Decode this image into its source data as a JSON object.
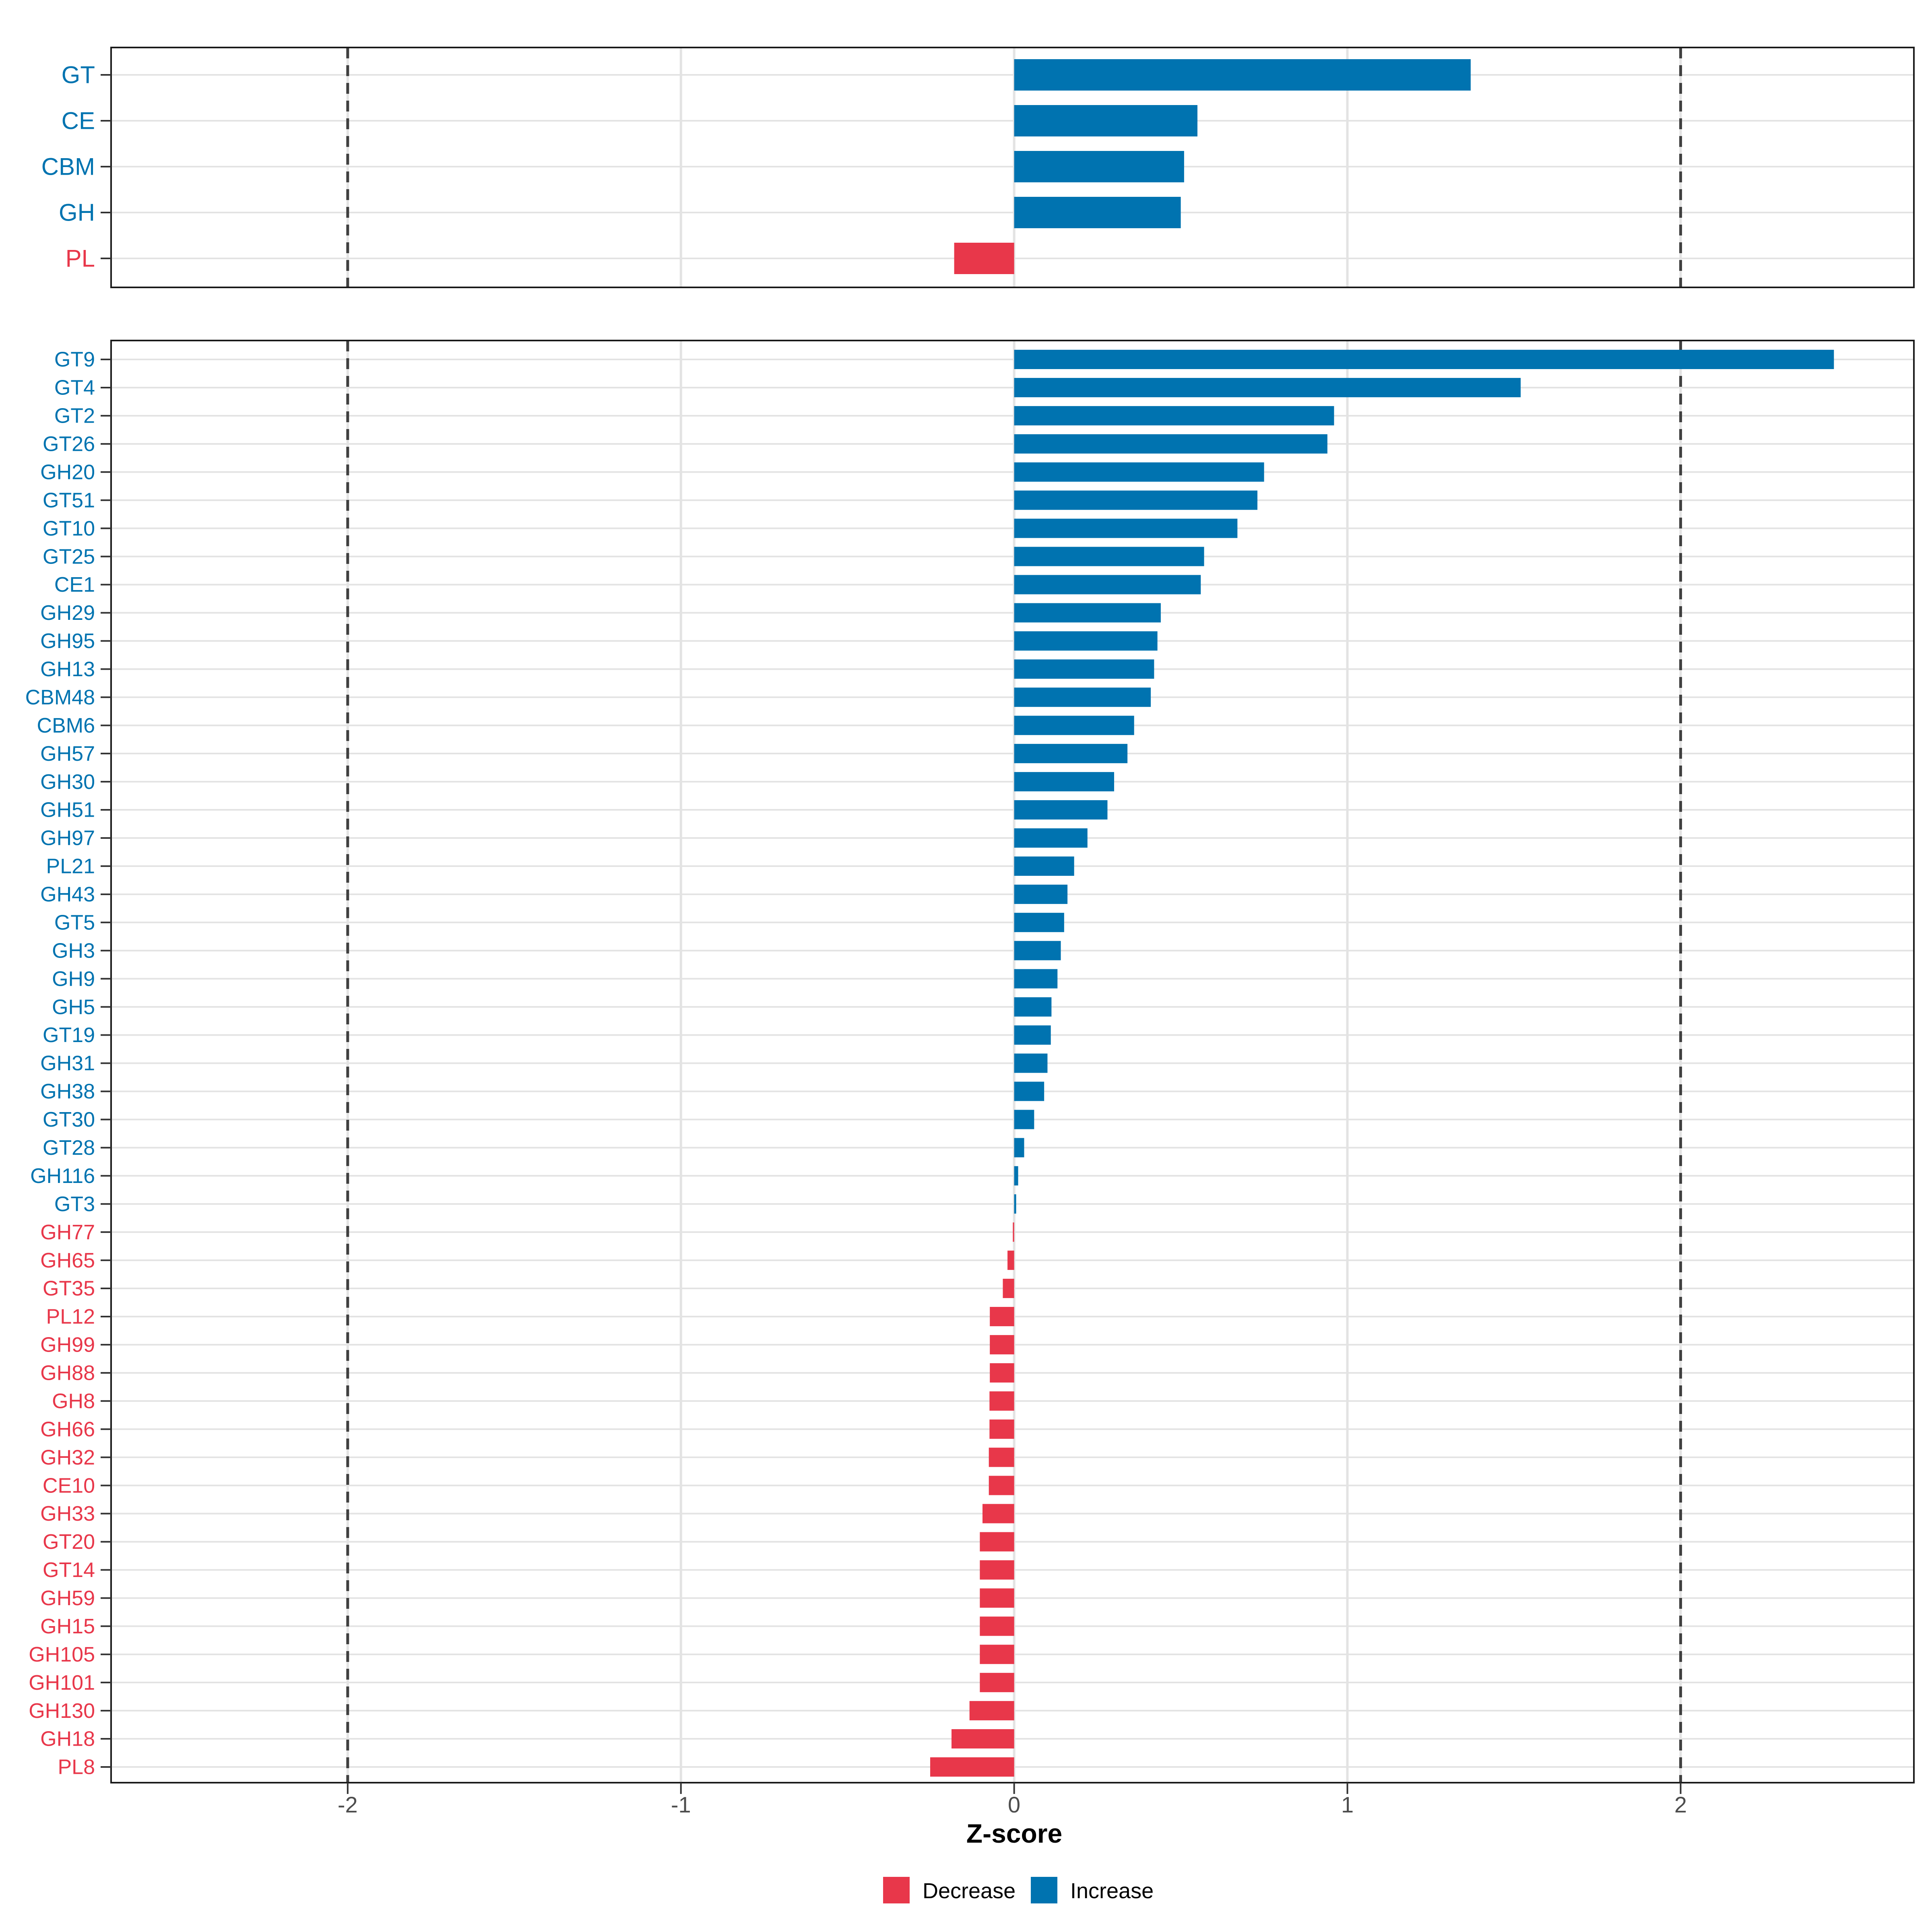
{
  "chart_data": {
    "type": "bar",
    "orientation": "horizontal",
    "title": "",
    "xlabel": "Z-score",
    "x_ticks": [
      -2,
      -1,
      0,
      1,
      2
    ],
    "xlim": [
      -2.71,
      2.7
    ],
    "reference_lines": [
      -2,
      2
    ],
    "grid": true,
    "legend_position": "bottom",
    "colors": {
      "increase": "#0073B0",
      "decrease": "#E8374A"
    },
    "legend": [
      {
        "label": "Decrease",
        "color": "#E8374A"
      },
      {
        "label": "Increase",
        "color": "#0073B0"
      }
    ],
    "panels": [
      {
        "name": "cazyme-classes",
        "categories": [
          "GT",
          "CE",
          "CBM",
          "GH",
          "PL"
        ],
        "values": [
          1.37,
          0.55,
          0.51,
          0.5,
          -0.18
        ]
      },
      {
        "name": "cazyme-families",
        "categories": [
          "GT9",
          "GT4",
          "GT2",
          "GT26",
          "GH20",
          "GT51",
          "GT10",
          "GT25",
          "CE1",
          "GH29",
          "GH95",
          "GH13",
          "CBM48",
          "CBM6",
          "GH57",
          "GH30",
          "GH51",
          "GH97",
          "PL21",
          "GH43",
          "GT5",
          "GH3",
          "GH9",
          "GH5",
          "GT19",
          "GH31",
          "GH38",
          "GT30",
          "GT28",
          "GH116",
          "GT3",
          "GH77",
          "GH65",
          "GT35",
          "PL12",
          "GH99",
          "GH88",
          "GH8",
          "GH66",
          "GH32",
          "CE10",
          "GH33",
          "GT20",
          "GT14",
          "GH59",
          "GH15",
          "GH105",
          "GH101",
          "GH130",
          "GH18",
          "PL8"
        ],
        "values": [
          2.46,
          1.52,
          0.96,
          0.94,
          0.75,
          0.73,
          0.67,
          0.57,
          0.56,
          0.44,
          0.43,
          0.42,
          0.41,
          0.36,
          0.34,
          0.3,
          0.28,
          0.22,
          0.18,
          0.16,
          0.15,
          0.14,
          0.13,
          0.112,
          0.11,
          0.1,
          0.09,
          0.06,
          0.03,
          0.012,
          0.006,
          -0.004,
          -0.02,
          -0.034,
          -0.073,
          -0.073,
          -0.073,
          -0.074,
          -0.074,
          -0.076,
          -0.076,
          -0.095,
          -0.103,
          -0.103,
          -0.103,
          -0.103,
          -0.103,
          -0.103,
          -0.134,
          -0.188,
          -0.252
        ]
      }
    ]
  }
}
